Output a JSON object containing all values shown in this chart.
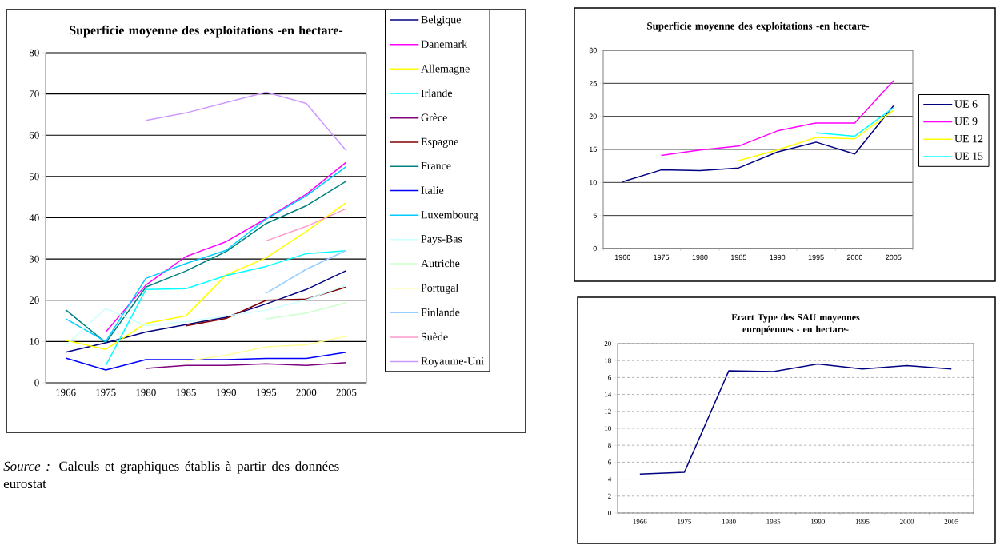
{
  "chart_data": [
    {
      "type": "line",
      "title": "Superficie moyenne des exploitations -en hectare-",
      "categories": [
        "1966",
        "1975",
        "1980",
        "1985",
        "1990",
        "1995",
        "2000",
        "2005"
      ],
      "ylim": [
        0,
        80
      ],
      "yticks": [
        0,
        10,
        20,
        30,
        40,
        50,
        60,
        70,
        80
      ],
      "grid": "y",
      "legend": "right",
      "annotations": [
        "*Source :* Calculs et graphiques établis à partir des données eurostat"
      ],
      "series": [
        {
          "name": "Belgique",
          "color": "#000080",
          "values": [
            7.4,
            9.7,
            12.3,
            14.1,
            15.9,
            19.1,
            22.6,
            27.2
          ]
        },
        {
          "name": "Danemark",
          "color": "#ff00ff",
          "values": [
            null,
            12.3,
            23.7,
            30.6,
            34.2,
            39.8,
            45.7,
            53.5
          ]
        },
        {
          "name": "Allemagne",
          "color": "#ffff00",
          "values": [
            10.3,
            8.1,
            14.4,
            16.2,
            26.1,
            30.3,
            36.7,
            43.7
          ]
        },
        {
          "name": "Irlande",
          "color": "#00ffff",
          "values": [
            null,
            4.2,
            22.6,
            22.8,
            26.0,
            28.2,
            31.3,
            32.0
          ]
        },
        {
          "name": "Grèce",
          "color": "#800080",
          "values": [
            null,
            null,
            3.5,
            4.2,
            4.2,
            4.6,
            4.2,
            4.9
          ]
        },
        {
          "name": "Espagne",
          "color": "#800000",
          "values": [
            null,
            null,
            null,
            13.8,
            15.6,
            20.0,
            20.3,
            23.2
          ]
        },
        {
          "name": "France",
          "color": "#008080",
          "values": [
            17.7,
            9.7,
            23.2,
            27.1,
            31.8,
            38.6,
            42.9,
            48.9
          ]
        },
        {
          "name": "Italie",
          "color": "#0000ff",
          "values": [
            6.0,
            3.1,
            5.6,
            5.6,
            5.6,
            5.9,
            5.9,
            7.4
          ]
        },
        {
          "name": "Luxembourg",
          "color": "#00ccff",
          "values": [
            15.5,
            10.0,
            25.3,
            28.9,
            32.1,
            39.7,
            45.3,
            52.4
          ]
        },
        {
          "name": "Pays-Bas",
          "color": "#ccffff",
          "values": [
            9.1,
            18.0,
            13.8,
            14.8,
            16.2,
            17.6,
            20.1,
            23.7
          ]
        },
        {
          "name": "Autriche",
          "color": "#ccffcc",
          "values": [
            null,
            null,
            null,
            null,
            null,
            15.5,
            16.9,
            19.4
          ]
        },
        {
          "name": "Portugal",
          "color": "#ffff99",
          "values": [
            null,
            null,
            null,
            5.3,
            6.7,
            8.7,
            9.2,
            11.3
          ]
        },
        {
          "name": "Finlande",
          "color": "#99ccff",
          "values": [
            null,
            null,
            null,
            null,
            null,
            21.7,
            27.5,
            32.1
          ]
        },
        {
          "name": "Suède",
          "color": "#ff99cc",
          "values": [
            null,
            null,
            null,
            null,
            null,
            34.4,
            37.9,
            42.2
          ]
        },
        {
          "name": "Royaume-Uni",
          "color": "#cc99ff",
          "values": [
            null,
            null,
            63.6,
            65.4,
            67.9,
            70.4,
            67.7,
            56.2
          ]
        }
      ]
    },
    {
      "type": "line",
      "title": "Superficie moyenne des exploitations -en hectare-",
      "categories": [
        "1966",
        "1975",
        "1980",
        "1985",
        "1990",
        "1995",
        "2000",
        "2005"
      ],
      "ylim": [
        0,
        30
      ],
      "yticks": [
        0,
        5,
        10,
        15,
        20,
        25,
        30
      ],
      "grid": "y",
      "legend": "right",
      "series": [
        {
          "name": "UE 6",
          "color": "#000080",
          "values": [
            10.1,
            11.9,
            11.8,
            12.2,
            14.6,
            16.1,
            14.3,
            21.6
          ]
        },
        {
          "name": "UE 9",
          "color": "#ff00ff",
          "values": [
            null,
            14.1,
            14.9,
            15.5,
            17.8,
            19.0,
            19.0,
            25.4
          ]
        },
        {
          "name": "UE 12",
          "color": "#ffff00",
          "values": [
            null,
            null,
            null,
            13.3,
            14.9,
            16.8,
            16.6,
            20.9
          ]
        },
        {
          "name": "UE 15",
          "color": "#00ffff",
          "values": [
            null,
            null,
            null,
            null,
            null,
            17.5,
            17.0,
            21.3
          ]
        }
      ]
    },
    {
      "type": "line",
      "title": "Ecart Type des SAU moyennes européennes - en hectare-",
      "categories": [
        "1966",
        "1975",
        "1980",
        "1985",
        "1990",
        "1995",
        "2000",
        "2005"
      ],
      "ylim": [
        0,
        20
      ],
      "yticks": [
        0,
        2,
        4,
        6,
        8,
        10,
        12,
        14,
        16,
        18,
        20
      ],
      "grid": "y",
      "series": [
        {
          "color": "#000080",
          "values": [
            4.6,
            4.8,
            16.8,
            16.7,
            17.6,
            17.0,
            17.4,
            17.0
          ]
        }
      ]
    }
  ]
}
